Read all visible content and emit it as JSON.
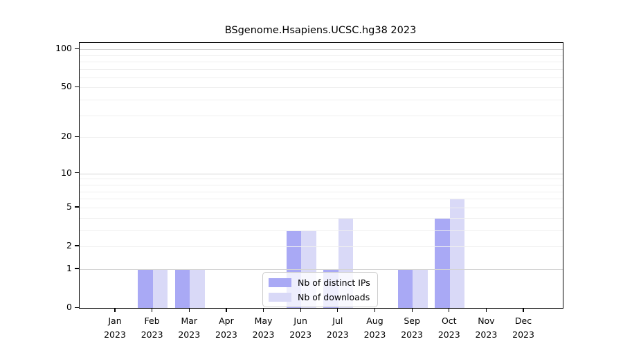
{
  "figure": {
    "title": "BSgenome.Hsapiens.UCSC.hg38 2023"
  },
  "chart_data": {
    "type": "bar",
    "title": "BSgenome.Hsapiens.UCSC.hg38 2023",
    "x_categories": [
      "Jan",
      "Feb",
      "Mar",
      "Apr",
      "May",
      "Jun",
      "Jul",
      "Aug",
      "Sep",
      "Oct",
      "Nov",
      "Dec"
    ],
    "x_year": "2023",
    "series": [
      {
        "name": "Nb of distinct IPs",
        "color": "#a9a9f5",
        "values": [
          0,
          1,
          1,
          0,
          0,
          3,
          1,
          0,
          1,
          4,
          0,
          0
        ]
      },
      {
        "name": "Nb of downloads",
        "color": "#d9d9f7",
        "values": [
          0,
          1,
          1,
          0,
          0,
          3,
          4,
          0,
          1,
          6,
          0,
          0
        ]
      }
    ],
    "yscale": "log1p",
    "ylim": [
      0,
      112
    ],
    "ytick_values": [
      100,
      50,
      20,
      10,
      5,
      2,
      1,
      0
    ],
    "ytick_labels": [
      "100",
      "50",
      "20",
      "10",
      "5",
      "2",
      "1",
      "0"
    ],
    "major_grid_values": [
      1,
      10,
      100
    ],
    "minor_grid_values": [
      2,
      3,
      4,
      5,
      6,
      7,
      8,
      9,
      20,
      30,
      40,
      50,
      60,
      70,
      80,
      90
    ],
    "grid": true,
    "legend": {
      "position": "bottom-center",
      "entries": [
        "Nb of distinct IPs",
        "Nb of downloads"
      ]
    },
    "colors": {
      "axis": "#000000",
      "major_grid": "#d4d4d4",
      "minor_grid": "#efefef",
      "background": "#ffffff"
    }
  }
}
